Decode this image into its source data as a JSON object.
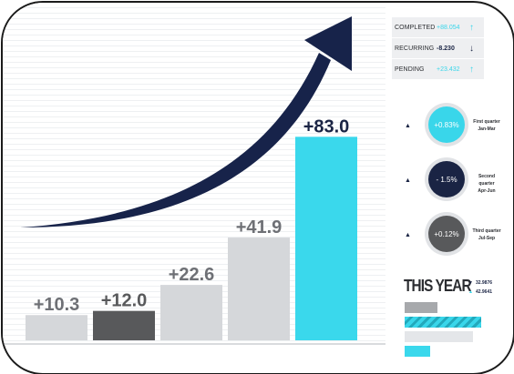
{
  "chart_data": {
    "type": "bar",
    "categories": [
      "",
      "",
      "",
      "",
      ""
    ],
    "values": [
      10.3,
      12.0,
      22.6,
      41.9,
      83.0
    ],
    "data_labels": [
      "+10.3",
      "+12.0",
      "+22.6",
      "+41.9",
      "+83.0"
    ],
    "bar_colors": [
      "#d5d7da",
      "#58595b",
      "#d5d7da",
      "#d5d7da",
      "#3ad8ec"
    ],
    "label_colors": [
      "#6e7075",
      "#58595b",
      "#6e7075",
      "#6e7075",
      "#1a2444"
    ],
    "ylim": [
      0,
      95
    ],
    "grid": true,
    "trend_arrow_color": "#17234a",
    "title": "",
    "xlabel": "",
    "ylabel": ""
  },
  "status": [
    {
      "label": "COMPLETED",
      "value": "+88.054",
      "arrow": "↑",
      "color": "#39d6ea"
    },
    {
      "label": "RECURRING",
      "value": "-8.230",
      "arrow": "↓",
      "color": "#1a2444"
    },
    {
      "label": "PENDING",
      "value": "+23.432",
      "arrow": "↑",
      "color": "#39d6ea"
    }
  ],
  "quarters": [
    {
      "value": "+0.83%",
      "line1": "First quarter",
      "line2": "Jan-Mar",
      "color": "#39d6ea"
    },
    {
      "value": "- 1.5%",
      "line1": "Second quarter",
      "line2": "Apr-Jun",
      "color": "#1a2444"
    },
    {
      "value": "+0.12%",
      "line1": "Third quarter",
      "line2": "Jul-Sep",
      "color": "#58595b"
    }
  ],
  "year": {
    "title": "THIS YEAR",
    "legend": [
      {
        "marker": "▼",
        "value": "32.9876",
        "color": "#1a2444"
      },
      {
        "marker": "▲",
        "value": "42.9641",
        "color": "#39d6ea"
      }
    ],
    "bars": [
      {
        "fraction": 0.42,
        "style": "grey"
      },
      {
        "fraction": 0.99,
        "style": "hatch"
      },
      {
        "fraction": 0.88,
        "style": "light"
      },
      {
        "fraction": 0.33,
        "style": "cyan"
      }
    ]
  },
  "icons": {
    "status_up": "arrow-up-icon",
    "status_down": "arrow-down-icon",
    "quarter_marker": "triangle-up-icon"
  }
}
